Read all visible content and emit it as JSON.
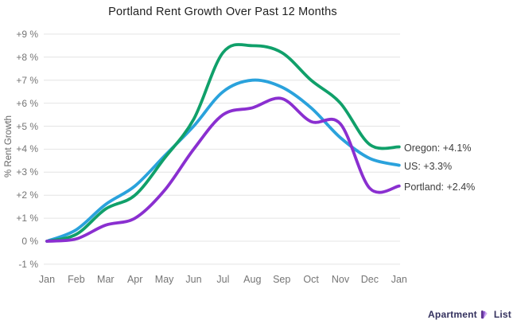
{
  "title": "Portland Rent Growth Over Past 12 Months",
  "y_axis_title": "% Rent Growth",
  "chart_data": {
    "type": "line",
    "title": "Portland Rent Growth Over Past 12 Months",
    "xlabel": "",
    "ylabel": "% Rent Growth",
    "x": [
      "Jan",
      "Feb",
      "Mar",
      "Apr",
      "May",
      "Jun",
      "Jul",
      "Aug",
      "Sep",
      "Oct",
      "Nov",
      "Dec",
      "Jan"
    ],
    "y_tick_labels": [
      "+9 %",
      "+8 %",
      "+7 %",
      "+6 %",
      "+5 %",
      "+4 %",
      "+3 %",
      "+2 %",
      "+1 %",
      "0 %",
      "-1 %"
    ],
    "y_tick_values": [
      9,
      8,
      7,
      6,
      5,
      4,
      3,
      2,
      1,
      0,
      -1
    ],
    "ylim": [
      -1,
      9
    ],
    "grid": "horizontal-only",
    "legend_position": "end-of-line-labels-right",
    "series": [
      {
        "name": "US",
        "color": "#2aa2dc",
        "end_label": "US: +3.3%",
        "end_value": 3.3,
        "values": [
          0.0,
          0.5,
          1.6,
          2.4,
          3.7,
          5.0,
          6.5,
          7.0,
          6.7,
          5.8,
          4.5,
          3.6,
          3.3
        ]
      },
      {
        "name": "Oregon",
        "color": "#10a06a",
        "end_label": "Oregon: +4.1%",
        "end_value": 4.1,
        "values": [
          0.0,
          0.3,
          1.4,
          2.0,
          3.6,
          5.3,
          8.2,
          8.5,
          8.2,
          7.0,
          6.0,
          4.2,
          4.1
        ]
      },
      {
        "name": "Portland",
        "color": "#8a2fd0",
        "end_label": "Portland: +2.4%",
        "end_value": 2.4,
        "values": [
          0.0,
          0.1,
          0.7,
          1.0,
          2.2,
          4.0,
          5.5,
          5.8,
          6.2,
          5.2,
          5.1,
          2.3,
          2.4
        ]
      }
    ],
    "grid_color": "#e4e4e4"
  },
  "branding": {
    "name_part1": "Apartment",
    "name_part2": "List"
  }
}
